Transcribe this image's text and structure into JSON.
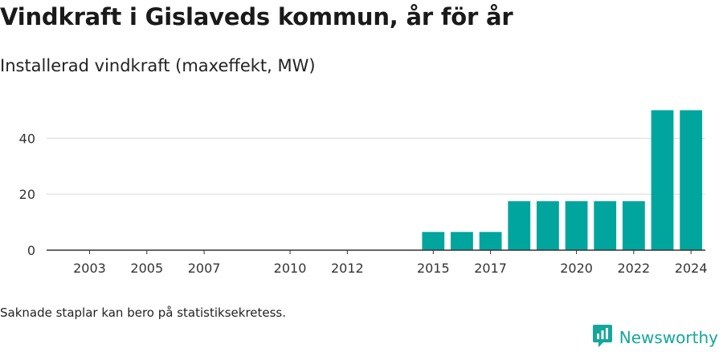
{
  "header": {
    "title": "Vindkraft i Gislaveds kommun, år för år",
    "subtitle": "Installerad vindkraft (maxeffekt, MW)"
  },
  "footer": {
    "note": "Saknade staplar kan bero på statistiksekretess.",
    "brand": "Newsworthy"
  },
  "colors": {
    "bar": "#00a59e",
    "grid": "#d9d9d9",
    "axis": "#333333",
    "brand": "#14a69c"
  },
  "icons": {
    "brand_logo": "newsworthy-logo-icon"
  },
  "chart_data": {
    "type": "bar",
    "title": "Installerad vindkraft (maxeffekt, MW)",
    "xlabel": "",
    "ylabel": "",
    "categories": [
      "2002",
      "2003",
      "2004",
      "2005",
      "2006",
      "2007",
      "2008",
      "2009",
      "2010",
      "2011",
      "2012",
      "2013",
      "2014",
      "2015",
      "2016",
      "2017",
      "2018",
      "2019",
      "2020",
      "2021",
      "2022",
      "2023",
      "2024"
    ],
    "values": [
      0,
      0,
      0,
      0,
      0,
      0,
      0,
      0,
      0,
      0,
      0,
      0,
      0,
      6.5,
      6.5,
      6.5,
      17.5,
      17.5,
      17.5,
      17.5,
      17.5,
      50,
      50
    ],
    "x_tick_labels": [
      "2003",
      "2005",
      "2007",
      "2010",
      "2012",
      "2015",
      "2017",
      "2020",
      "2022",
      "2024"
    ],
    "y_ticks": [
      0,
      20,
      40
    ],
    "ylim": [
      0,
      55
    ],
    "grid": true,
    "legend": "none"
  }
}
